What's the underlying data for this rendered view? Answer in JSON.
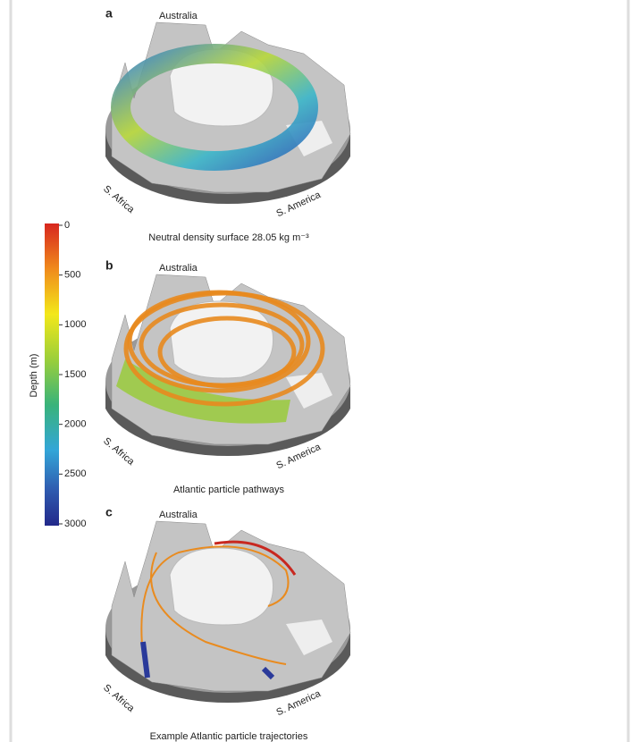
{
  "colorbar": {
    "label": "Depth (m)",
    "lim": [
      0,
      3000
    ],
    "ticks": [
      0,
      500,
      1000,
      1500,
      2000,
      2500,
      3000
    ]
  },
  "panels": [
    {
      "letter": "a",
      "places": [
        "Australia",
        "S. Africa",
        "S. America"
      ],
      "caption": "Neutral density surface 28.05 kg m⁻³"
    },
    {
      "letter": "b",
      "places": [
        "Australia",
        "S. Africa",
        "S. America"
      ],
      "caption": "Atlantic particle pathways"
    },
    {
      "letter": "c",
      "places": [
        "Australia",
        "S. Africa",
        "S. America"
      ],
      "caption": "Example Atlantic particle trajectories"
    }
  ]
}
